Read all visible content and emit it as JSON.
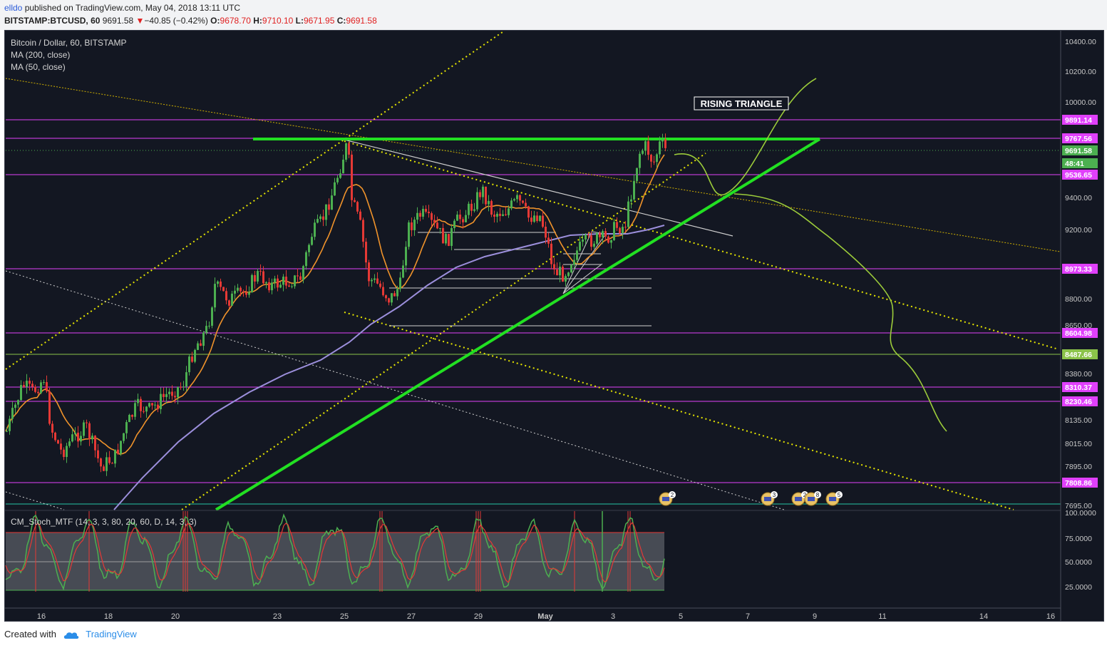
{
  "header": {
    "author": "elldo",
    "published_text": " published on TradingView.com, May 04, 2018 13:11 UTC",
    "symbol": "BITSTAMP:BTCUSD, 60",
    "last": "9691.58",
    "change": "−40.85 (−0.42%)",
    "o_label": "O:",
    "o_value": "9678.70",
    "h_label": "H:",
    "h_value": "9710.10",
    "l_label": "L:",
    "l_value": "9671.95",
    "c_label": "C:",
    "c_value": "9691.58"
  },
  "legend": {
    "title": "Bitcoin / Dollar, 60, BITSTAMP",
    "ma200": "MA (200, close)",
    "ma50": "MA (50, close)",
    "indicator": "CM_Stoch_MTF (14, 3, 3, 80, 20, 60, D, 14, 3, 3)"
  },
  "annotation": {
    "rising_triangle": "RISING TRIANGLE"
  },
  "colors": {
    "background": "#131722",
    "up": "#4caf50",
    "down": "#e53935",
    "ma50": "#f0932b",
    "ma200": "#9c8fdc",
    "support": "#22e022",
    "level_magenta": "#e040fb",
    "level_green": "#8bc34a",
    "forecast": "#9ccc3a",
    "channel_yellow": "#e6e600",
    "trend_white": "#d0d0d0"
  },
  "price_axis": {
    "ticks": [
      "10400.00",
      "10200.00",
      "10000.00",
      "9400.00",
      "9200.00",
      "8800.00",
      "8650.00",
      "8380.00",
      "8135.00",
      "8015.00",
      "7895.00",
      "7695.00"
    ],
    "labels": [
      {
        "text": "9891.14",
        "color": "#e040fb"
      },
      {
        "text": "9767.56",
        "color": "#e040fb"
      },
      {
        "text": "9691.58",
        "color": "#4caf50"
      },
      {
        "text": "48:41",
        "color": "#4caf50"
      },
      {
        "text": "9536.65",
        "color": "#e040fb"
      },
      {
        "text": "8973.33",
        "color": "#e040fb"
      },
      {
        "text": "8604.98",
        "color": "#e040fb"
      },
      {
        "text": "8487.66",
        "color": "#8bc34a"
      },
      {
        "text": "8310.37",
        "color": "#e040fb"
      },
      {
        "text": "8230.46",
        "color": "#e040fb"
      },
      {
        "text": "7808.86",
        "color": "#e040fb"
      }
    ]
  },
  "stoch_axis": {
    "ticks": [
      "100.0000",
      "75.0000",
      "50.0000",
      "25.0000"
    ]
  },
  "time_axis": {
    "labels": [
      "16",
      "18",
      "20",
      "23",
      "25",
      "27",
      "29",
      "May",
      "3",
      "5",
      "7",
      "9",
      "11",
      "14",
      "16"
    ]
  },
  "events": {
    "badges": [
      "2",
      "3",
      "2",
      "8",
      "5"
    ]
  },
  "footer": {
    "created_with": "Created with",
    "brand": "TradingView"
  }
}
